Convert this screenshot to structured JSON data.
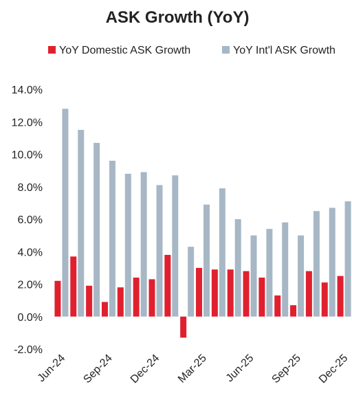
{
  "chart_data": {
    "type": "bar",
    "title": "ASK Growth (YoY)",
    "categories": [
      "Jun-24",
      null,
      null,
      "Sep-24",
      null,
      null,
      "Dec-24",
      null,
      null,
      "Mar-25",
      null,
      null,
      "Jun-25",
      null,
      null,
      "Sep-25",
      null,
      null,
      "Dec-25"
    ],
    "series": [
      {
        "name": "YoY Domestic ASK Growth",
        "color": "#e0202e",
        "values": [
          2.2,
          3.7,
          1.9,
          0.9,
          1.8,
          2.4,
          2.3,
          3.8,
          -1.3,
          3.0,
          2.9,
          2.9,
          2.8,
          2.4,
          1.3,
          0.7,
          2.8,
          2.1,
          2.5
        ]
      },
      {
        "name": "YoY Int'l  ASK Growth",
        "color": "#a7b7c5",
        "values": [
          12.8,
          11.5,
          10.7,
          9.6,
          8.8,
          8.9,
          8.1,
          8.7,
          4.3,
          6.9,
          7.9,
          6.0,
          5.0,
          5.4,
          5.8,
          5.0,
          6.5,
          6.7,
          7.1
        ]
      }
    ],
    "ylim": [
      -2,
      14
    ],
    "yticks": [
      {
        "value": -2,
        "label": "-2.0%"
      },
      {
        "value": 0,
        "label": "0.0%"
      },
      {
        "value": 2,
        "label": "2.0%"
      },
      {
        "value": 4,
        "label": "4.0%"
      },
      {
        "value": 6,
        "label": "6.0%"
      },
      {
        "value": 8,
        "label": "8.0%"
      },
      {
        "value": 10,
        "label": "10.0%"
      },
      {
        "value": 12,
        "label": "12.0%"
      },
      {
        "value": 14,
        "label": "14.0%"
      }
    ],
    "legend": "top"
  }
}
